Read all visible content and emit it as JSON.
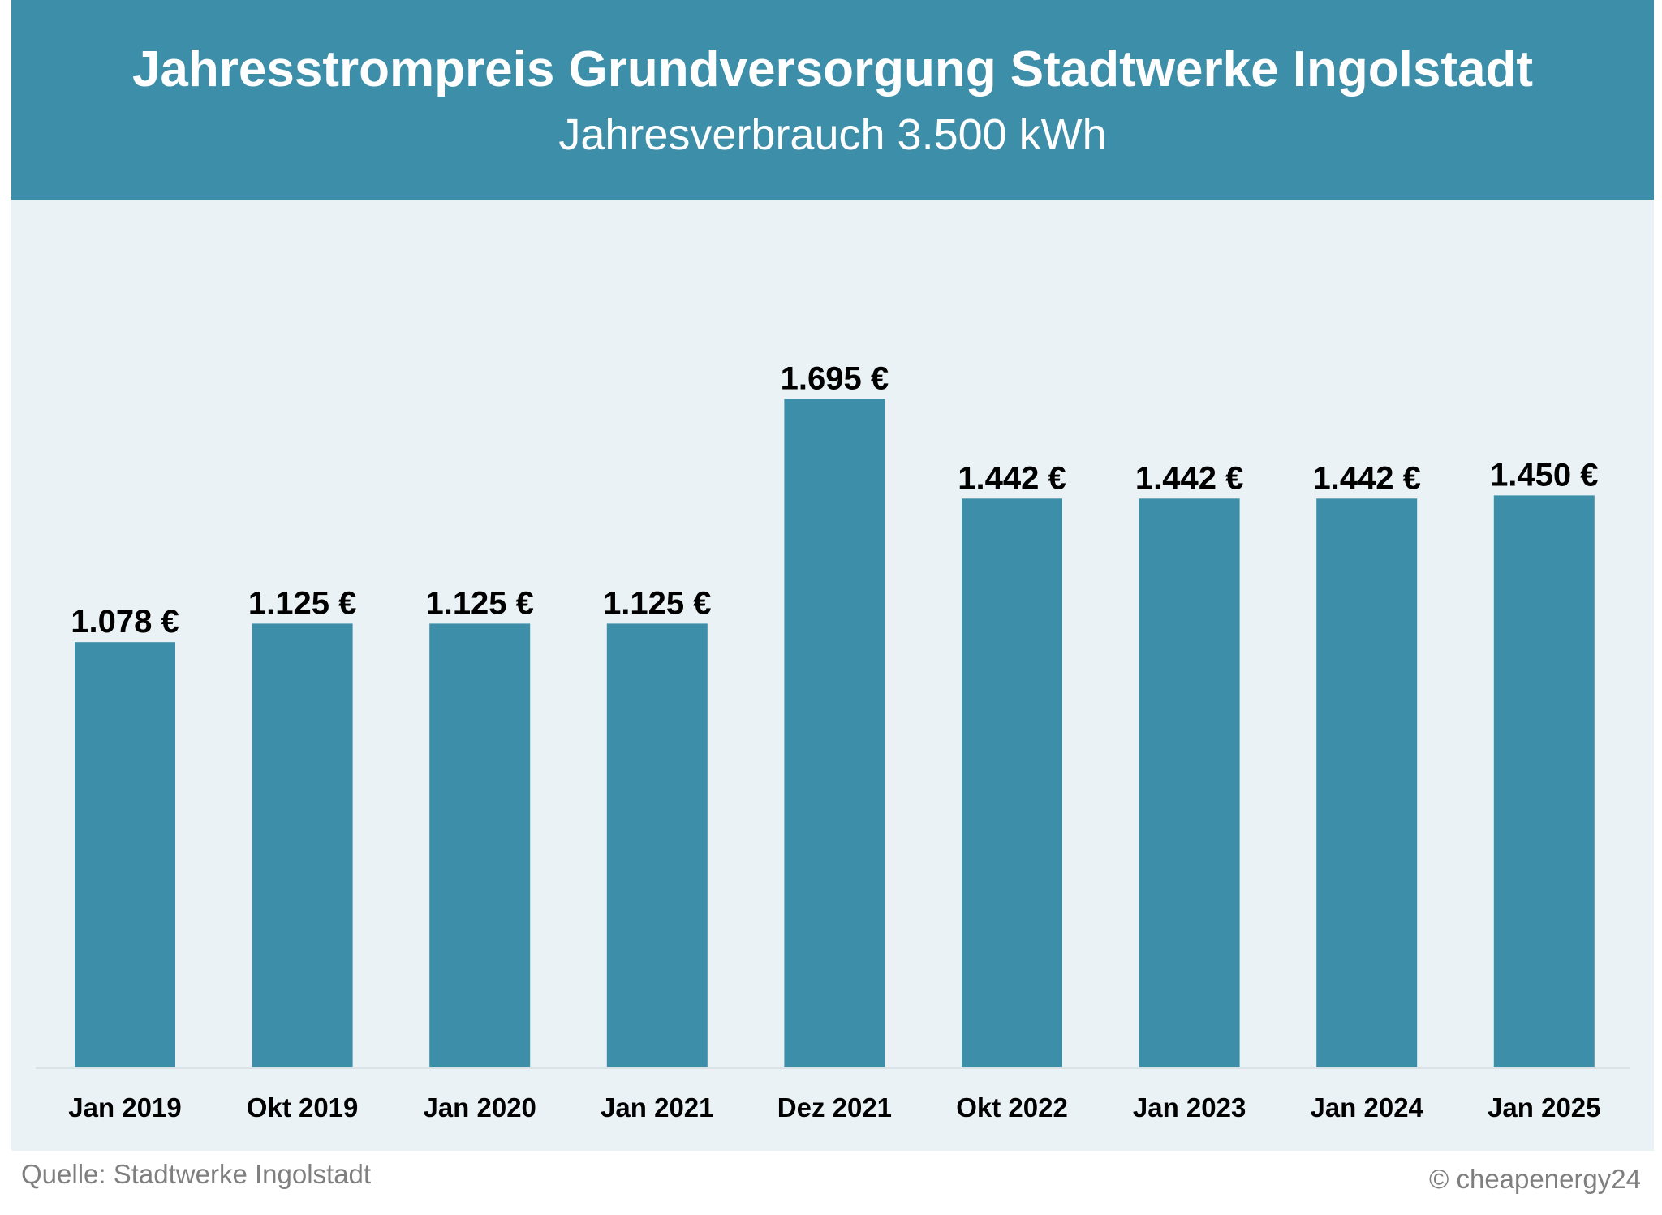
{
  "header": {
    "title": "Jahresstrompreis Grundversorgung Stadtwerke Ingolstadt",
    "subtitle": "Jahresverbrauch 3.500 kWh"
  },
  "footer": {
    "source": "Quelle: Stadtwerke Ingolstadt",
    "copyright": "© cheapenergy24"
  },
  "colors": {
    "header_bg": "#3d8ea8",
    "bar": "#3d8ea8",
    "plot_bg": "#eaf2f5",
    "label_text": "#000000"
  },
  "chart_data": {
    "type": "bar",
    "title": "Jahresstrompreis Grundversorgung Stadtwerke Ingolstadt",
    "subtitle": "Jahresverbrauch 3.500 kWh",
    "xlabel": "",
    "ylabel": "",
    "ylim": [
      0,
      2200
    ],
    "grid": false,
    "categories": [
      "Jan 2019",
      "Okt 2019",
      "Jan 2020",
      "Jan 2021",
      "Dez 2021",
      "Okt 2022",
      "Jan 2023",
      "Jan 2024",
      "Jan 2025"
    ],
    "values": [
      1078,
      1125,
      1125,
      1125,
      1695,
      1442,
      1442,
      1442,
      1450
    ],
    "value_labels": [
      "1.078 €",
      "1.125 €",
      "1.125 €",
      "1.125 €",
      "1.695 €",
      "1.442 €",
      "1.442 €",
      "1.442 €",
      "1.450 €"
    ]
  }
}
